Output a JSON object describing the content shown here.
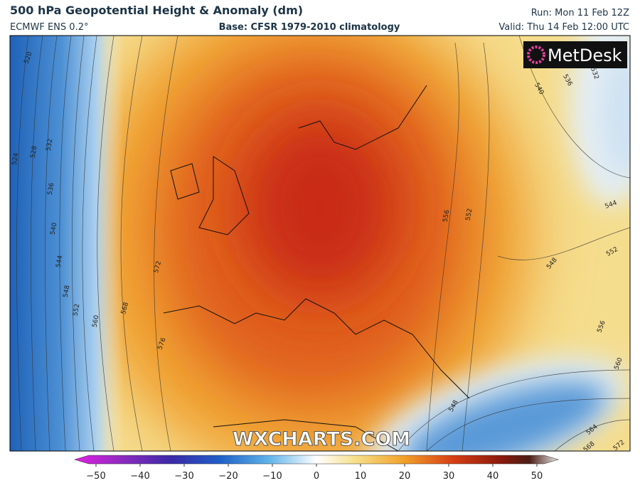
{
  "header": {
    "title": "500 hPa Geopotential Height & Anomaly (dm)",
    "model": "ECMWF ENS 0.2°",
    "base": "Base: CFSR 1979-2010 climatology",
    "run": "Run: Mon 11 Feb 12Z",
    "valid": "Valid: Thu 14 Feb 12:00 UTC"
  },
  "logo": "MetDesk",
  "watermark": "WXCHARTS.COM",
  "contour_labels": [
    "520",
    "524",
    "528",
    "532",
    "536",
    "540",
    "544",
    "548",
    "552",
    "560",
    "568",
    "572",
    "576",
    "556",
    "552",
    "548",
    "544",
    "552",
    "556",
    "560",
    "564",
    "568",
    "572",
    "548",
    "540",
    "536",
    "532"
  ],
  "colorbar": {
    "ticks": [
      "−50",
      "−40",
      "−30",
      "−20",
      "−10",
      "0",
      "10",
      "20",
      "30",
      "40",
      "50"
    ]
  }
}
